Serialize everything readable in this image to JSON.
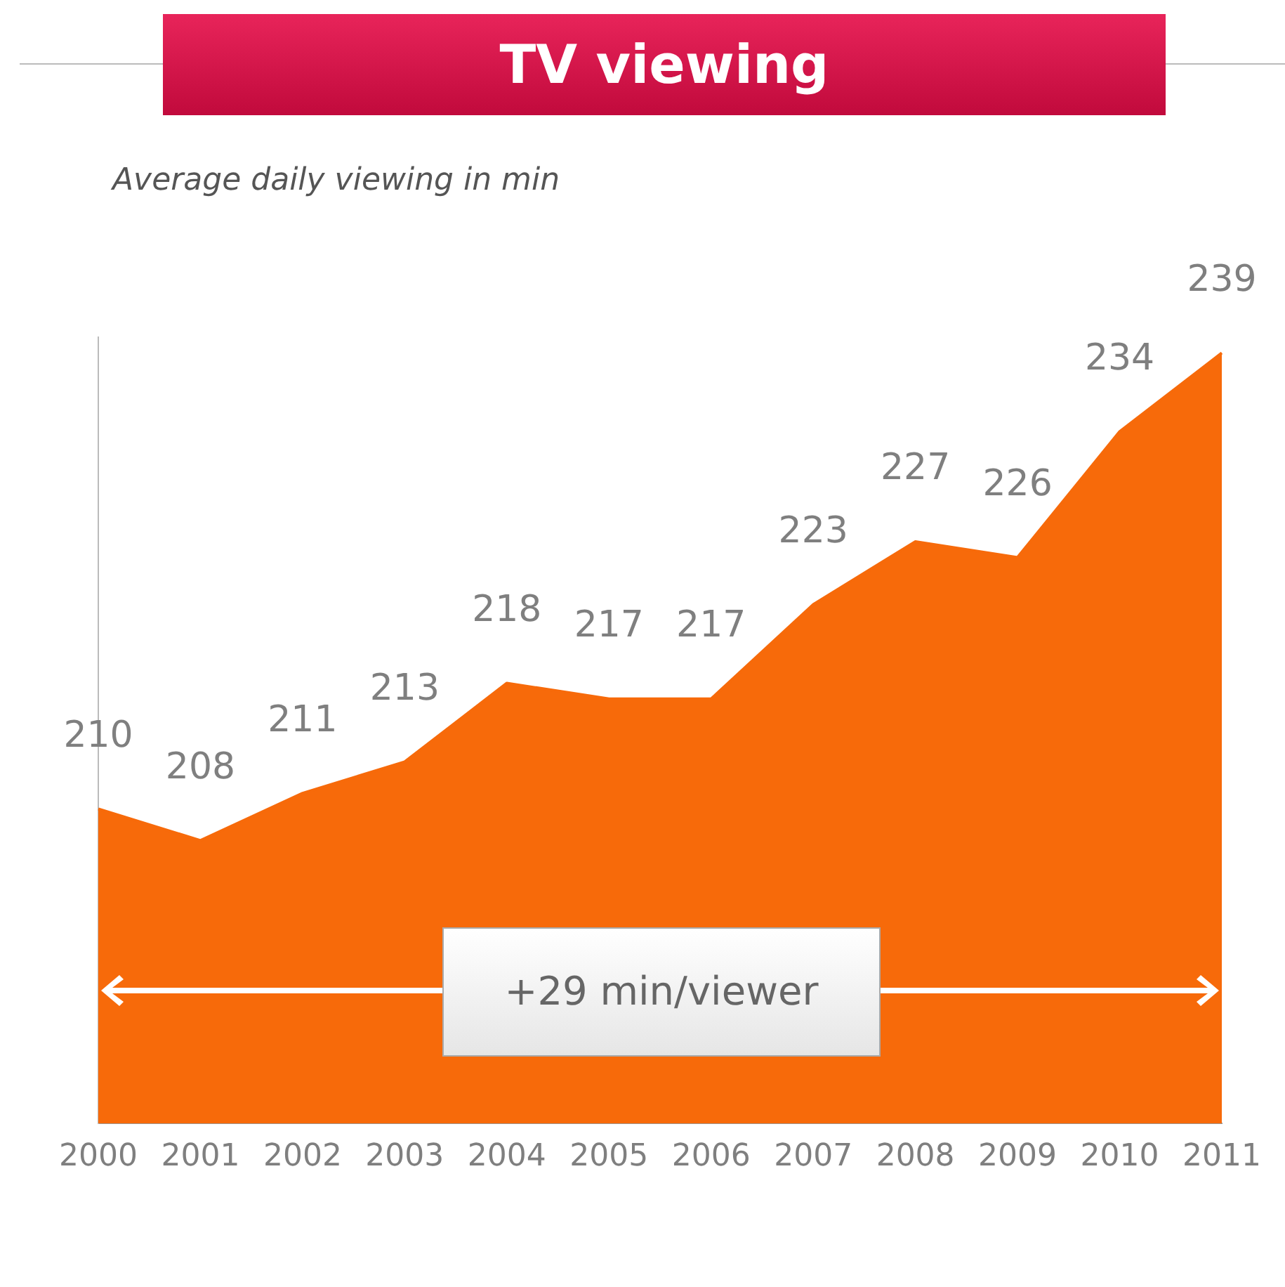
{
  "chart_data": {
    "type": "area",
    "title": "TV viewing",
    "subtitle": "Average daily viewing in min",
    "categories": [
      "2000",
      "2001",
      "2002",
      "2003",
      "2004",
      "2005",
      "2006",
      "2007",
      "2008",
      "2009",
      "2010",
      "2011"
    ],
    "series": [
      {
        "color": "#f76a0a",
        "values": [
          210,
          208,
          211,
          213,
          218,
          217,
          217,
          223,
          227,
          226,
          234,
          239
        ]
      }
    ],
    "ylim": [
      190,
      240
    ],
    "tick_labels": "x",
    "data_labels": true,
    "grid": false,
    "legend": false,
    "annotations": [
      "+29 min/viewer"
    ]
  }
}
